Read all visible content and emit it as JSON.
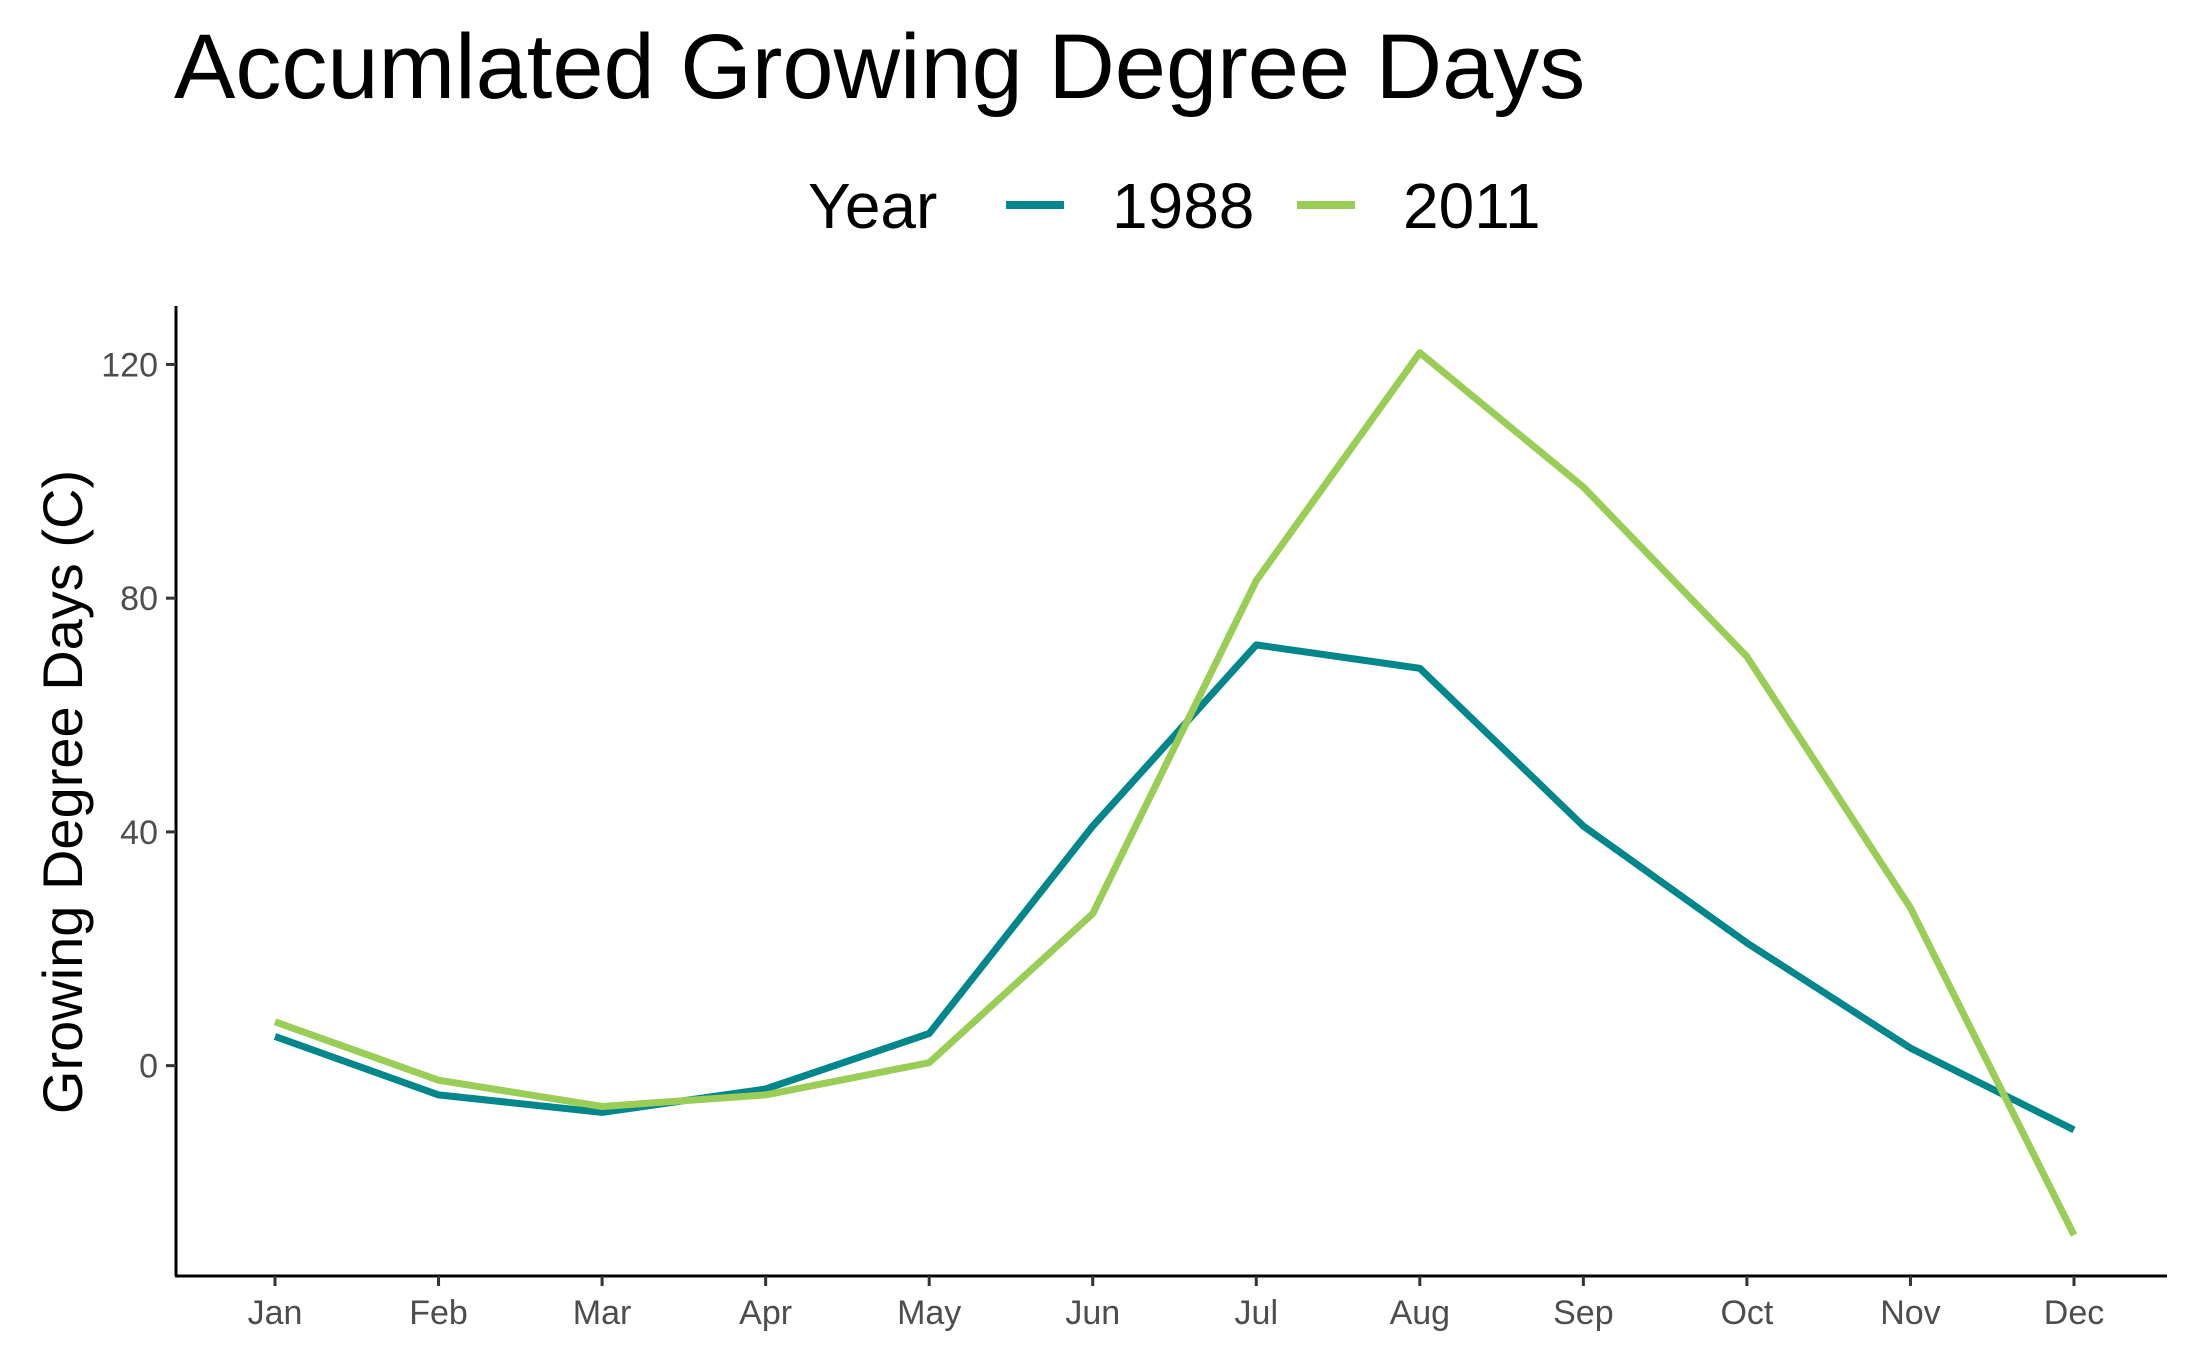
{
  "chart_data": {
    "type": "line",
    "title": "Accumlated Growing Degree Days",
    "xlabel": "",
    "ylabel": "Growing Degree Days (C)",
    "legend": {
      "title": "Year",
      "position": "top"
    },
    "categories": [
      "Jan",
      "Feb",
      "Mar",
      "Apr",
      "May",
      "Jun",
      "Jul",
      "Aug",
      "Sep",
      "Oct",
      "Nov",
      "Dec"
    ],
    "series": [
      {
        "name": "1988",
        "color": "#00868B",
        "values": [
          5,
          -5,
          -8,
          -4,
          5.5,
          41,
          72,
          68,
          41,
          21,
          3,
          -11
        ]
      },
      {
        "name": "2011",
        "color": "#9ACD55",
        "values": [
          7.5,
          -2.5,
          -7,
          -5,
          0.5,
          26,
          83,
          122,
          99,
          70,
          27,
          -29
        ]
      }
    ],
    "ylim": [
      -36,
      130
    ],
    "yticks": [
      0,
      40,
      80,
      120
    ],
    "grid": false
  }
}
